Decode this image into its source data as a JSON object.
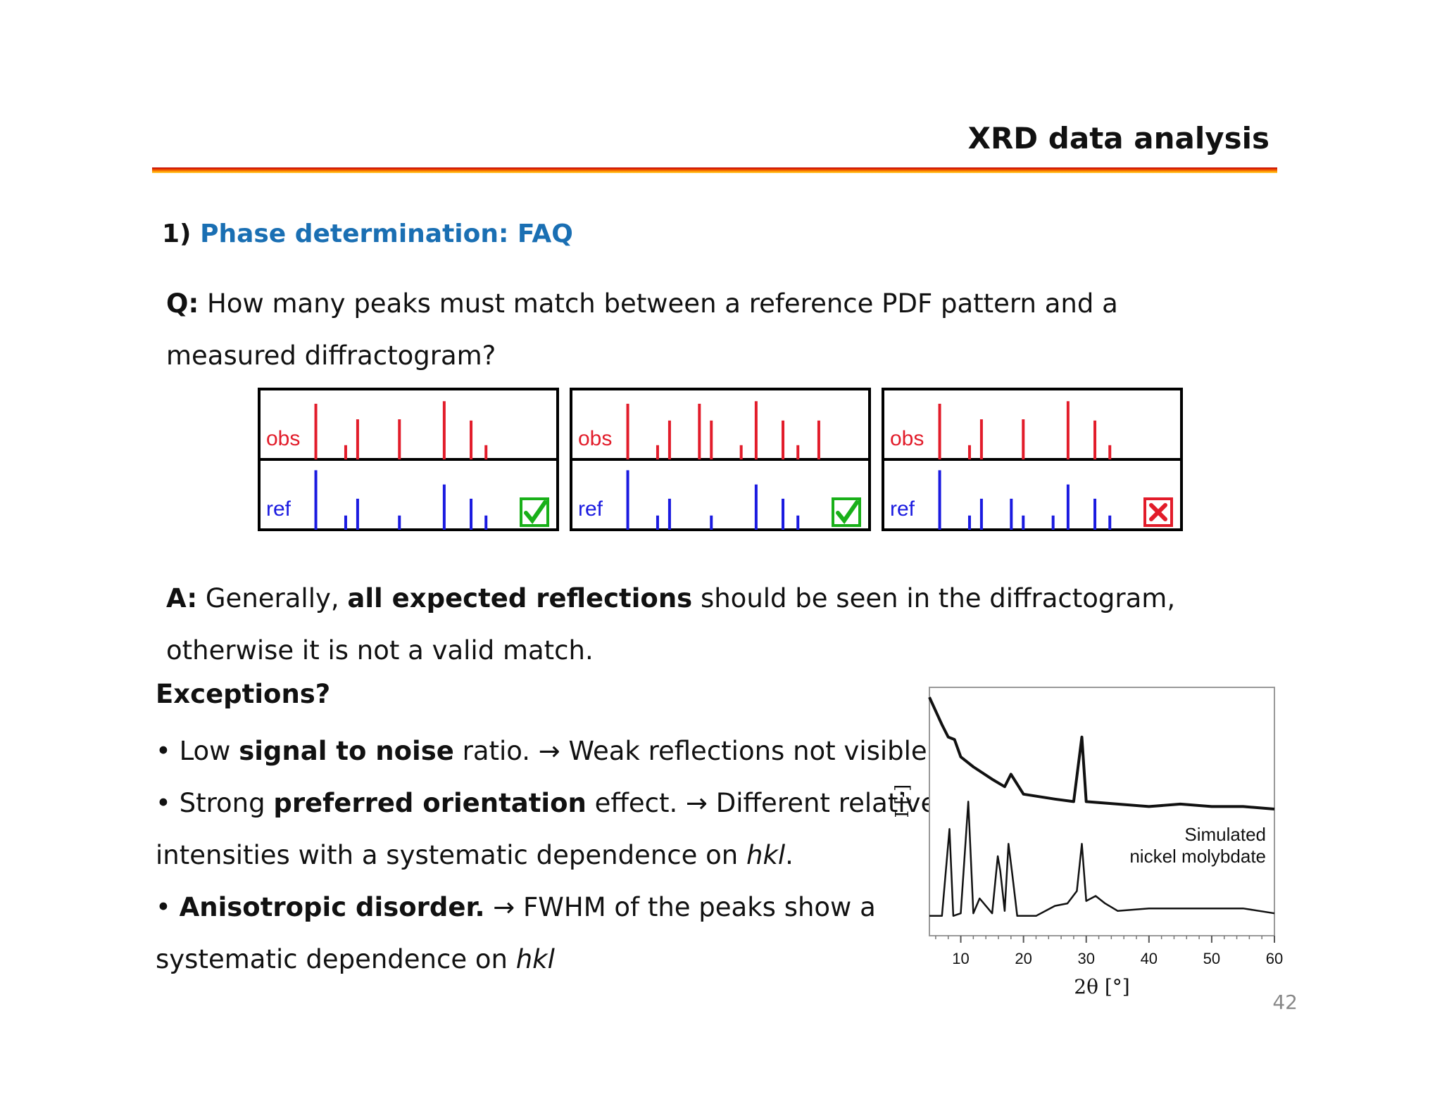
{
  "slide": {
    "title": "XRD data analysis",
    "section_number": "1)",
    "section_title": "Phase determination: FAQ",
    "question": {
      "label": "Q:",
      "text": " How many peaks must match between a reference PDF pattern and a measured diffractogram?"
    },
    "answer": {
      "label": "A:",
      "text_before": " Generally, ",
      "bold": "all expected reflections",
      "text_after": " should be seen in the diffractogram, otherwise it is not a valid match."
    },
    "exceptions_heading": "Exceptions?",
    "bullets": [
      {
        "lines": [
          [
            "• Low ",
            "signal to noise",
            " ratio. →  Weak reflections not visible."
          ]
        ]
      },
      {
        "lines": [
          [
            "• Strong ",
            "preferred orientation",
            " effect. → Different relative"
          ],
          [
            "intensities with a systematic dependence on ",
            "",
            "hkl",
            "."
          ]
        ]
      },
      {
        "lines": [
          [
            "• ",
            "Anisotropic disorder.",
            " → FWHM of the peaks show a"
          ],
          [
            "systematic dependence on ",
            "",
            "hkl",
            ""
          ]
        ]
      }
    ],
    "page_number": "42"
  },
  "pattern_boxes": [
    {
      "obs_label": "obs",
      "ref_label": "ref",
      "obs_peaks": [
        [
          0.19,
          0.86
        ],
        [
          0.29,
          0.22
        ],
        [
          0.33,
          0.62
        ],
        [
          0.47,
          0.62
        ],
        [
          0.62,
          0.9
        ],
        [
          0.71,
          0.6
        ],
        [
          0.76,
          0.22
        ]
      ],
      "ref_peaks": [
        [
          0.19,
          0.92
        ],
        [
          0.29,
          0.22
        ],
        [
          0.33,
          0.48
        ],
        [
          0.47,
          0.22
        ],
        [
          0.62,
          0.7
        ],
        [
          0.71,
          0.48
        ],
        [
          0.76,
          0.22
        ]
      ],
      "verdict": "match",
      "verdict_icon": "check-icon",
      "verdict_color": "#19b019"
    },
    {
      "obs_label": "obs",
      "ref_label": "ref",
      "obs_peaks": [
        [
          0.19,
          0.86
        ],
        [
          0.29,
          0.22
        ],
        [
          0.33,
          0.6
        ],
        [
          0.43,
          0.86
        ],
        [
          0.47,
          0.6
        ],
        [
          0.57,
          0.22
        ],
        [
          0.62,
          0.9
        ],
        [
          0.71,
          0.6
        ],
        [
          0.76,
          0.22
        ],
        [
          0.83,
          0.6
        ]
      ],
      "ref_peaks": [
        [
          0.19,
          0.92
        ],
        [
          0.29,
          0.22
        ],
        [
          0.33,
          0.48
        ],
        [
          0.47,
          0.22
        ],
        [
          0.62,
          0.7
        ],
        [
          0.71,
          0.48
        ],
        [
          0.76,
          0.22
        ]
      ],
      "verdict": "match",
      "verdict_icon": "check-icon",
      "verdict_color": "#19b019"
    },
    {
      "obs_label": "obs",
      "ref_label": "ref",
      "obs_peaks": [
        [
          0.19,
          0.86
        ],
        [
          0.29,
          0.22
        ],
        [
          0.33,
          0.62
        ],
        [
          0.47,
          0.62
        ],
        [
          0.62,
          0.9
        ],
        [
          0.71,
          0.6
        ],
        [
          0.76,
          0.22
        ]
      ],
      "ref_peaks": [
        [
          0.19,
          0.92
        ],
        [
          0.29,
          0.22
        ],
        [
          0.33,
          0.48
        ],
        [
          0.43,
          0.48
        ],
        [
          0.47,
          0.22
        ],
        [
          0.57,
          0.22
        ],
        [
          0.62,
          0.7
        ],
        [
          0.71,
          0.48
        ],
        [
          0.76,
          0.22
        ]
      ],
      "verdict": "no-match",
      "verdict_icon": "cross-icon",
      "verdict_color": "#e21c2a"
    }
  ],
  "chart_data": {
    "type": "line",
    "xlabel": "2θ [°]",
    "ylabel": "I [-]",
    "xlim": [
      5,
      60
    ],
    "xticks": [
      10,
      20,
      30,
      40,
      50,
      60
    ],
    "yticks": [],
    "annotation": [
      "Simulated",
      "nickel molybdate"
    ],
    "series": [
      {
        "x": [
          5.0,
          7.0,
          8.0,
          9.0,
          10.0,
          12.0,
          15.0,
          17.0,
          18.0,
          20.0,
          25.0,
          28.0,
          29.3,
          30.0,
          35.0,
          40.0,
          45.0,
          50.0,
          55.0,
          60.0
        ],
        "y": [
          96,
          85,
          80,
          79,
          72,
          68,
          63,
          60,
          65,
          57,
          55,
          54,
          80,
          54,
          53,
          52,
          53,
          52,
          52,
          51
        ]
      },
      {
        "x": [
          5.0,
          7.0,
          8.2,
          8.8,
          10.0,
          11.2,
          12.0,
          13.0,
          15.0,
          15.9,
          16.3,
          17.0,
          17.6,
          18.2,
          19.0,
          22.0,
          25.0,
          27.0,
          28.5,
          29.3,
          30.0,
          31.5,
          33.0,
          35.0,
          40.0,
          45.0,
          50.0,
          55.0,
          60.0
        ],
        "y": [
          8,
          8,
          43,
          8,
          9,
          54,
          9,
          15,
          9,
          32,
          26,
          10,
          37,
          25,
          8,
          8,
          12,
          13,
          18,
          37,
          14,
          16,
          13,
          10,
          11,
          11,
          11,
          11,
          9
        ]
      }
    ]
  }
}
